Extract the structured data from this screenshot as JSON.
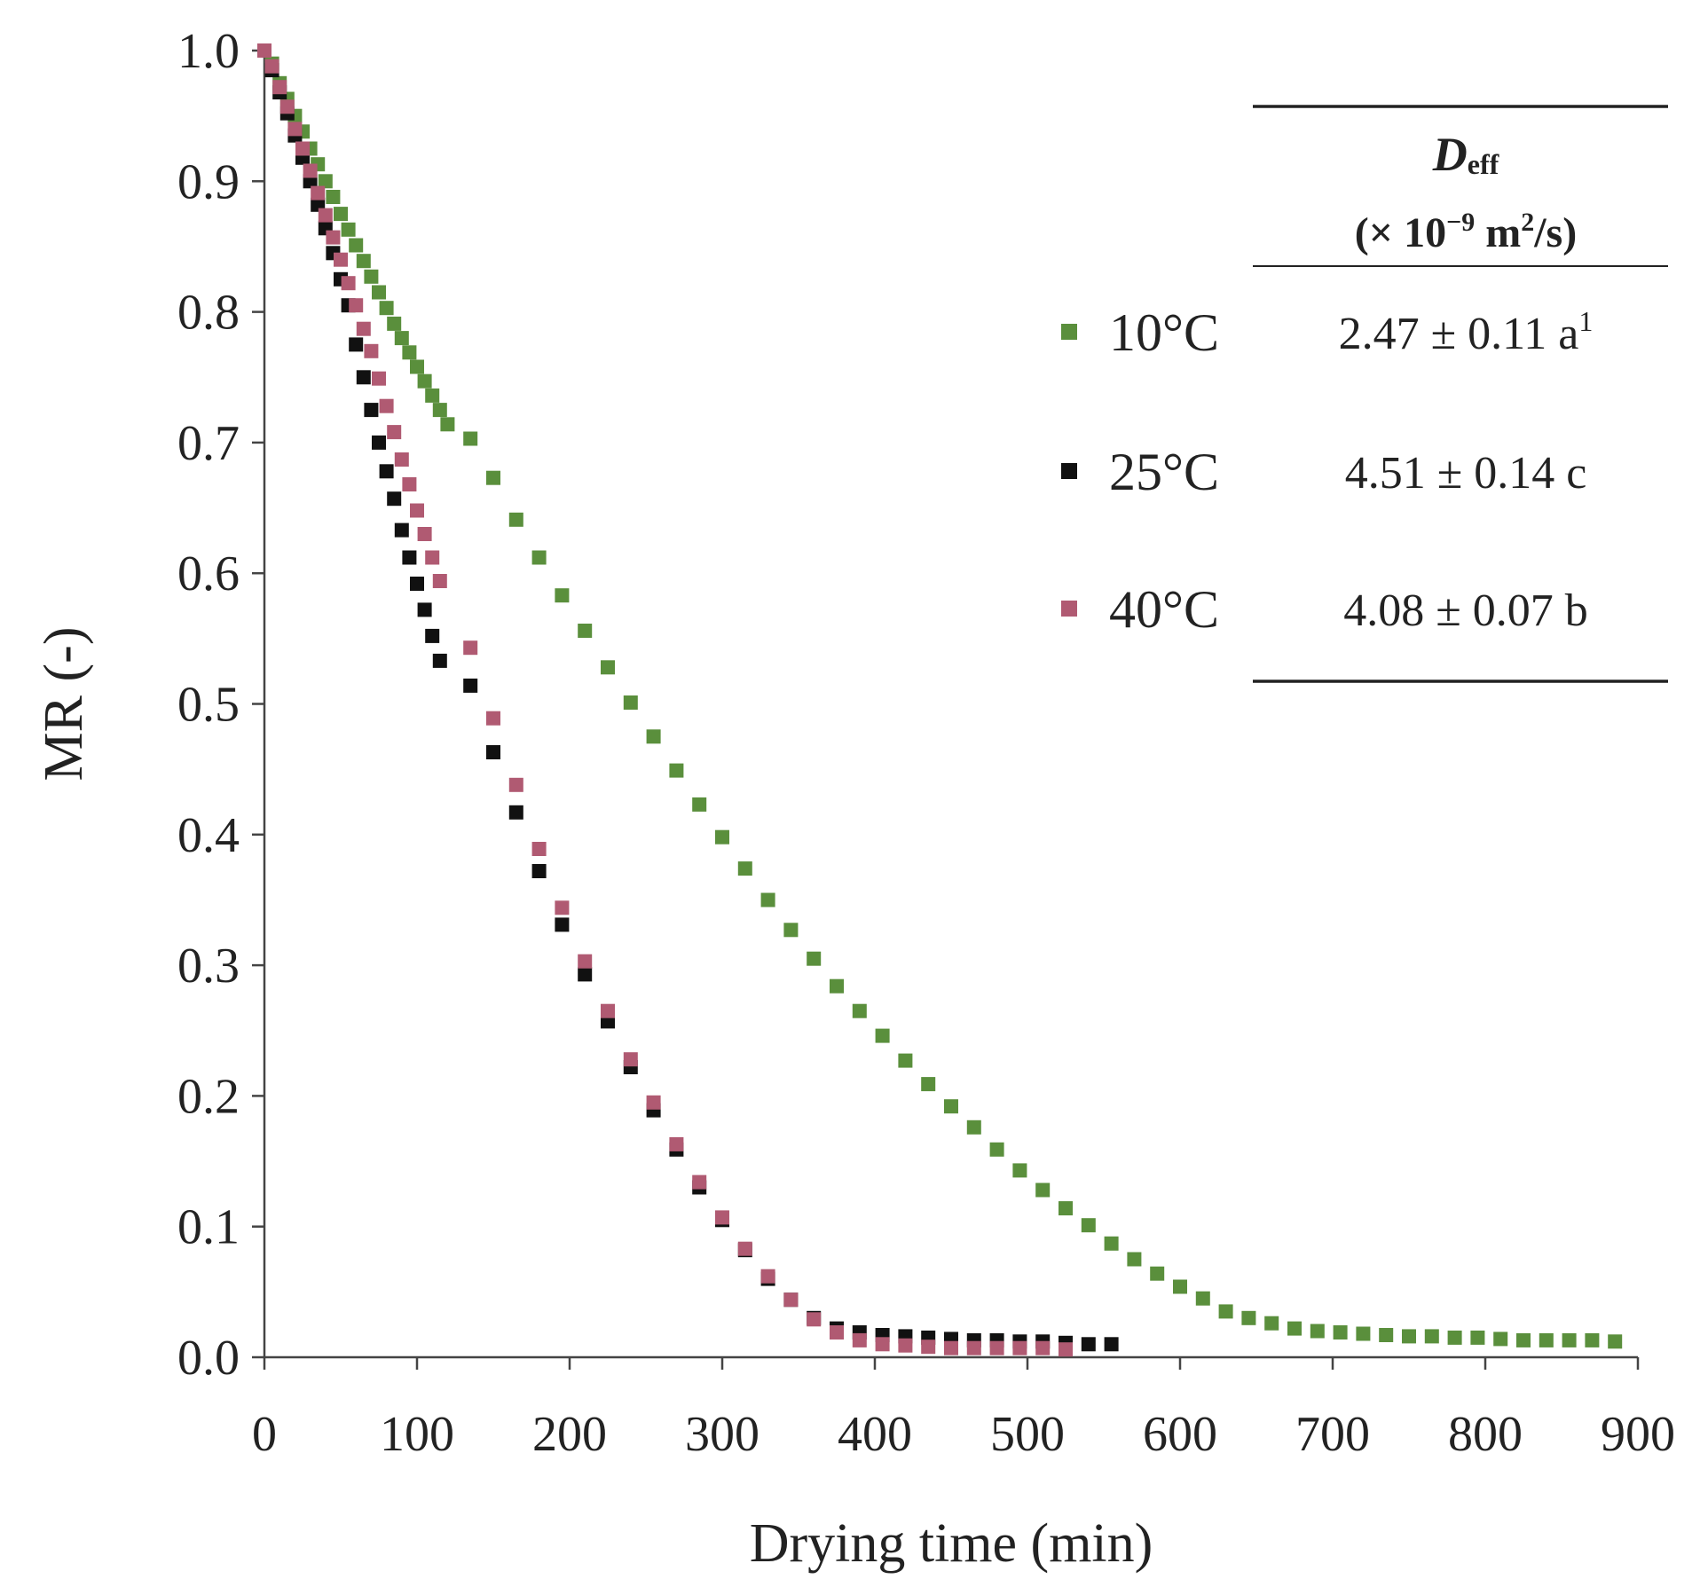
{
  "chart_data": {
    "type": "scatter",
    "title": "",
    "xlabel": "Drying time (min)",
    "ylabel": "MR (-)",
    "xlim": [
      0,
      900
    ],
    "ylim": [
      0,
      1.0
    ],
    "x_ticks": [
      "0",
      "100",
      "200",
      "300",
      "400",
      "500",
      "600",
      "700",
      "800",
      "900"
    ],
    "y_ticks": [
      "0.0",
      "0.1",
      "0.2",
      "0.3",
      "0.4",
      "0.5",
      "0.6",
      "0.7",
      "0.8",
      "0.9",
      "1.0"
    ],
    "grid": false,
    "legend_position": "top-right",
    "series": [
      {
        "name": "10°C",
        "color": "#5a8f3c",
        "deff": "2.47 ± 0.11 a",
        "deff_sup": "1",
        "points": [
          [
            0,
            1.0
          ],
          [
            5,
            0.99
          ],
          [
            10,
            0.975
          ],
          [
            15,
            0.963
          ],
          [
            20,
            0.95
          ],
          [
            25,
            0.938
          ],
          [
            30,
            0.925
          ],
          [
            35,
            0.913
          ],
          [
            40,
            0.9
          ],
          [
            45,
            0.888
          ],
          [
            50,
            0.875
          ],
          [
            55,
            0.863
          ],
          [
            60,
            0.851
          ],
          [
            65,
            0.839
          ],
          [
            70,
            0.827
          ],
          [
            75,
            0.815
          ],
          [
            80,
            0.803
          ],
          [
            85,
            0.791
          ],
          [
            90,
            0.78
          ],
          [
            95,
            0.769
          ],
          [
            100,
            0.758
          ],
          [
            105,
            0.747
          ],
          [
            110,
            0.736
          ],
          [
            115,
            0.725
          ],
          [
            120,
            0.714
          ],
          [
            135,
            0.703
          ],
          [
            150,
            0.673
          ],
          [
            165,
            0.641
          ],
          [
            180,
            0.612
          ],
          [
            195,
            0.583
          ],
          [
            210,
            0.556
          ],
          [
            225,
            0.528
          ],
          [
            240,
            0.501
          ],
          [
            255,
            0.475
          ],
          [
            270,
            0.449
          ],
          [
            285,
            0.423
          ],
          [
            300,
            0.398
          ],
          [
            315,
            0.374
          ],
          [
            330,
            0.35
          ],
          [
            345,
            0.327
          ],
          [
            360,
            0.305
          ],
          [
            375,
            0.284
          ],
          [
            390,
            0.265
          ],
          [
            405,
            0.246
          ],
          [
            420,
            0.227
          ],
          [
            435,
            0.209
          ],
          [
            450,
            0.192
          ],
          [
            465,
            0.176
          ],
          [
            480,
            0.159
          ],
          [
            495,
            0.143
          ],
          [
            510,
            0.128
          ],
          [
            525,
            0.114
          ],
          [
            540,
            0.101
          ],
          [
            555,
            0.087
          ],
          [
            570,
            0.075
          ],
          [
            585,
            0.064
          ],
          [
            600,
            0.054
          ],
          [
            615,
            0.045
          ],
          [
            630,
            0.035
          ],
          [
            645,
            0.03
          ],
          [
            660,
            0.026
          ],
          [
            675,
            0.022
          ],
          [
            690,
            0.02
          ],
          [
            705,
            0.019
          ],
          [
            720,
            0.018
          ],
          [
            735,
            0.017
          ],
          [
            750,
            0.016
          ],
          [
            765,
            0.016
          ],
          [
            780,
            0.015
          ],
          [
            795,
            0.015
          ],
          [
            810,
            0.014
          ],
          [
            825,
            0.013
          ],
          [
            840,
            0.013
          ],
          [
            855,
            0.013
          ],
          [
            870,
            0.013
          ],
          [
            885,
            0.012
          ]
        ]
      },
      {
        "name": "25°C",
        "color": "#111111",
        "deff": "4.51 ± 0.14 c",
        "deff_sup": "",
        "points": [
          [
            0,
            1.0
          ],
          [
            5,
            0.985
          ],
          [
            10,
            0.968
          ],
          [
            15,
            0.952
          ],
          [
            20,
            0.935
          ],
          [
            25,
            0.918
          ],
          [
            30,
            0.9
          ],
          [
            35,
            0.882
          ],
          [
            40,
            0.864
          ],
          [
            45,
            0.845
          ],
          [
            50,
            0.825
          ],
          [
            55,
            0.805
          ],
          [
            60,
            0.775
          ],
          [
            65,
            0.75
          ],
          [
            70,
            0.725
          ],
          [
            75,
            0.7
          ],
          [
            80,
            0.678
          ],
          [
            85,
            0.657
          ],
          [
            90,
            0.633
          ],
          [
            95,
            0.612
          ],
          [
            100,
            0.592
          ],
          [
            105,
            0.572
          ],
          [
            110,
            0.552
          ],
          [
            115,
            0.533
          ],
          [
            135,
            0.514
          ],
          [
            150,
            0.463
          ],
          [
            165,
            0.417
          ],
          [
            180,
            0.372
          ],
          [
            195,
            0.331
          ],
          [
            210,
            0.293
          ],
          [
            225,
            0.257
          ],
          [
            240,
            0.222
          ],
          [
            255,
            0.189
          ],
          [
            270,
            0.159
          ],
          [
            285,
            0.13
          ],
          [
            300,
            0.105
          ],
          [
            315,
            0.082
          ],
          [
            330,
            0.06
          ],
          [
            345,
            0.044
          ],
          [
            360,
            0.03
          ],
          [
            375,
            0.022
          ],
          [
            390,
            0.019
          ],
          [
            405,
            0.017
          ],
          [
            420,
            0.016
          ],
          [
            435,
            0.015
          ],
          [
            450,
            0.014
          ],
          [
            465,
            0.013
          ],
          [
            480,
            0.013
          ],
          [
            495,
            0.012
          ],
          [
            510,
            0.012
          ],
          [
            525,
            0.011
          ],
          [
            540,
            0.01
          ],
          [
            555,
            0.01
          ]
        ]
      },
      {
        "name": "40°C",
        "color": "#b05a72",
        "deff": "4.08 ± 0.07 b",
        "deff_sup": "",
        "points": [
          [
            0,
            1.0
          ],
          [
            5,
            0.988
          ],
          [
            10,
            0.972
          ],
          [
            15,
            0.957
          ],
          [
            20,
            0.94
          ],
          [
            25,
            0.925
          ],
          [
            30,
            0.908
          ],
          [
            35,
            0.891
          ],
          [
            40,
            0.874
          ],
          [
            45,
            0.857
          ],
          [
            50,
            0.84
          ],
          [
            55,
            0.822
          ],
          [
            60,
            0.805
          ],
          [
            65,
            0.787
          ],
          [
            70,
            0.77
          ],
          [
            75,
            0.749
          ],
          [
            80,
            0.728
          ],
          [
            85,
            0.708
          ],
          [
            90,
            0.687
          ],
          [
            95,
            0.668
          ],
          [
            100,
            0.648
          ],
          [
            105,
            0.63
          ],
          [
            110,
            0.612
          ],
          [
            115,
            0.594
          ],
          [
            135,
            0.543
          ],
          [
            150,
            0.489
          ],
          [
            165,
            0.438
          ],
          [
            180,
            0.389
          ],
          [
            195,
            0.344
          ],
          [
            210,
            0.303
          ],
          [
            225,
            0.265
          ],
          [
            240,
            0.228
          ],
          [
            255,
            0.195
          ],
          [
            270,
            0.163
          ],
          [
            285,
            0.134
          ],
          [
            300,
            0.107
          ],
          [
            315,
            0.083
          ],
          [
            330,
            0.062
          ],
          [
            345,
            0.044
          ],
          [
            360,
            0.029
          ],
          [
            375,
            0.019
          ],
          [
            390,
            0.013
          ],
          [
            405,
            0.01
          ],
          [
            420,
            0.009
          ],
          [
            435,
            0.008
          ],
          [
            450,
            0.007
          ],
          [
            465,
            0.007
          ],
          [
            480,
            0.007
          ],
          [
            495,
            0.007
          ],
          [
            510,
            0.007
          ],
          [
            525,
            0.006
          ]
        ]
      }
    ],
    "annotation_table": {
      "header_symbol": "D",
      "header_subscript": "eff",
      "unit_prefix": "(× 10",
      "unit_exponent": "−9",
      "unit_mid": " m",
      "unit_sq": "2",
      "unit_suffix": "/s)"
    }
  }
}
